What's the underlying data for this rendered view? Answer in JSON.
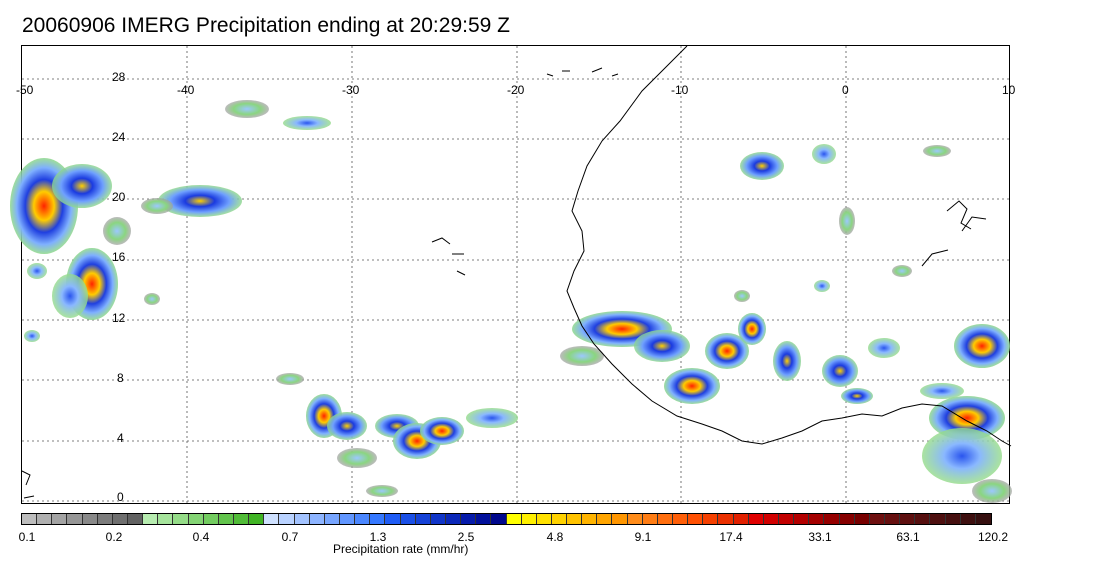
{
  "title": "20060906 IMERG Precipitation ending at 20:29:59 Z",
  "map": {
    "lon_labels": [
      "-50",
      "-40",
      "-30",
      "-20",
      "-10",
      "0",
      "10"
    ],
    "lat_labels": [
      "28",
      "24",
      "20",
      "16",
      "12",
      "8",
      "4",
      "0"
    ],
    "lon_range": [
      -50,
      10
    ],
    "lat_range": [
      -0.5,
      30
    ],
    "coastline_color": "#000000",
    "gridline_style": "dotted"
  },
  "colorbar": {
    "title": "Precipitation rate (mm/hr)",
    "tick_labels": [
      "0.1",
      "0.2",
      "0.4",
      "0.7",
      "1.3",
      "2.5",
      "4.8",
      "9.1",
      "17.4",
      "33.1",
      "63.1",
      "120.2"
    ],
    "colors": [
      "#bdbdbd",
      "#b0b0b0",
      "#a3a3a3",
      "#969696",
      "#898989",
      "#7c7c7c",
      "#6f6f6f",
      "#626262",
      "#b7ecb0",
      "#a6e49c",
      "#95dc88",
      "#84d474",
      "#73cc60",
      "#62c44c",
      "#51bc38",
      "#40b424",
      "#cfe1ff",
      "#b9d2ff",
      "#a3c3ff",
      "#8db4ff",
      "#77a5ff",
      "#6196ff",
      "#4b87ff",
      "#3578ff",
      "#1f5cf5",
      "#1a4fe6",
      "#1542d7",
      "#1035c8",
      "#0b28b9",
      "#061baa",
      "#01109b",
      "#00088c",
      "#ffff00",
      "#fff000",
      "#ffe100",
      "#ffd200",
      "#ffc300",
      "#ffb400",
      "#ffa500",
      "#ff9600",
      "#ff8c1a",
      "#ff7d14",
      "#ff6e0e",
      "#ff5f08",
      "#ff5002",
      "#f54000",
      "#eb3000",
      "#e12000",
      "#e00000",
      "#d10000",
      "#c20000",
      "#b30000",
      "#a40000",
      "#950000",
      "#860000",
      "#770000",
      "#6e1010",
      "#661010",
      "#5e1010",
      "#561010",
      "#4e1010",
      "#461010",
      "#3e1010",
      "#361010"
    ]
  }
}
